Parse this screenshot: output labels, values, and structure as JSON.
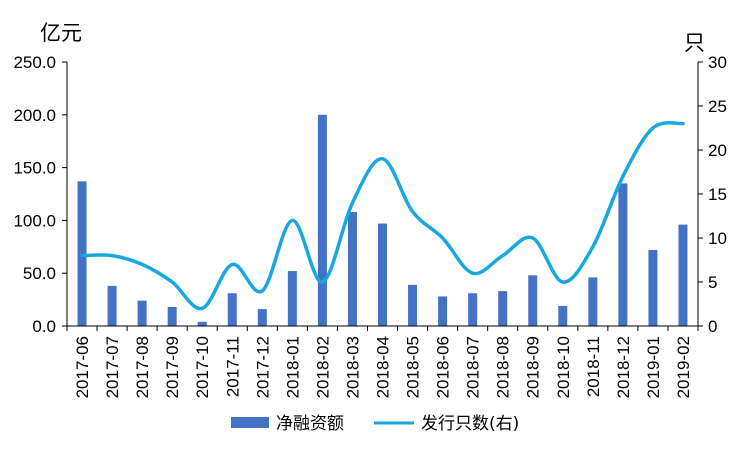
{
  "chart_data": {
    "type": "bar",
    "categories": [
      "2017-06",
      "2017-07",
      "2017-08",
      "2017-09",
      "2017-10",
      "2017-11",
      "2017-12",
      "2018-01",
      "2018-02",
      "2018-03",
      "2018-04",
      "2018-05",
      "2018-06",
      "2018-07",
      "2018-08",
      "2018-09",
      "2018-10",
      "2018-11",
      "2018-12",
      "2019-01",
      "2019-02"
    ],
    "series": [
      {
        "name": "净融资额",
        "type": "bar",
        "axis": "left",
        "color": "#4472C4",
        "values": [
          137,
          38,
          24,
          18,
          4,
          31,
          16,
          52,
          200,
          108,
          97,
          39,
          28,
          31,
          33,
          48,
          19,
          46,
          135,
          72,
          96
        ]
      },
      {
        "name": "发行只数(右)",
        "type": "line",
        "axis": "right",
        "color": "#18A8E0",
        "values": [
          8,
          8,
          7,
          5,
          2,
          7,
          4,
          12,
          5,
          14,
          19,
          13,
          10,
          6,
          8,
          10,
          5,
          9,
          17,
          22.5,
          23
        ]
      }
    ],
    "left_axis": {
      "unit": "亿元",
      "ylim": [
        0,
        250
      ],
      "ticks": [
        "0.0",
        "50.0",
        "100.0",
        "150.0",
        "200.0",
        "250.0"
      ]
    },
    "right_axis": {
      "unit": "只",
      "ylim": [
        0,
        30
      ],
      "ticks": [
        "0",
        "5",
        "10",
        "15",
        "20",
        "25",
        "30"
      ]
    },
    "grid": false,
    "legend_position": "bottom"
  }
}
